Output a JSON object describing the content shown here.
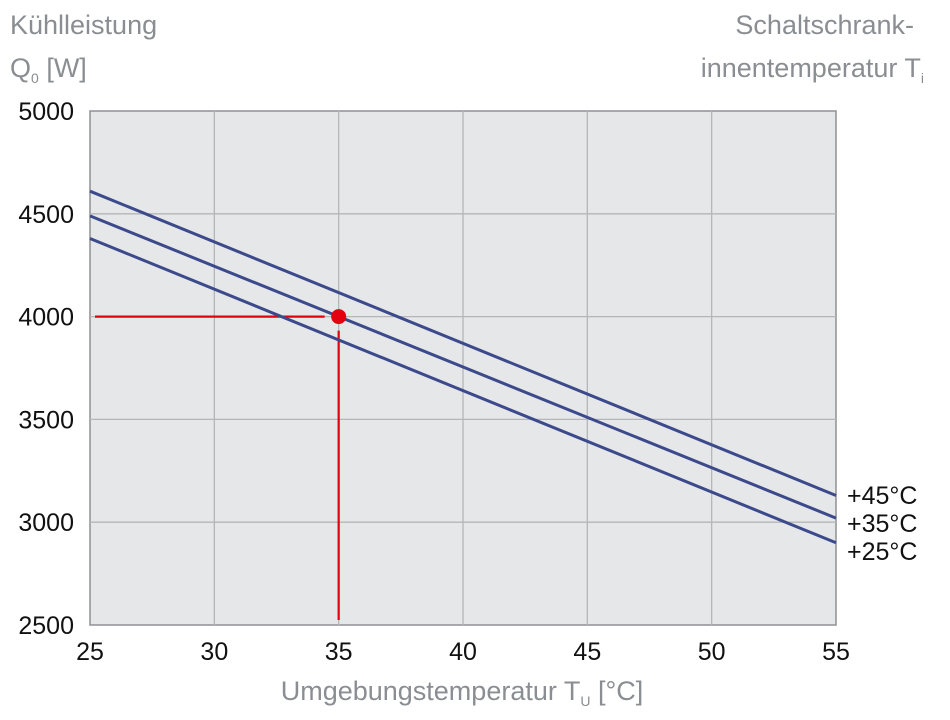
{
  "chart_data": {
    "type": "line",
    "ylabel_lines": [
      "Kühlleistung",
      "Q",
      "0",
      " [W]"
    ],
    "right_title": [
      "Schaltschrank-",
      "innentemperatur T",
      "i"
    ],
    "xlabel": [
      "Umgebungstemperatur T",
      "U",
      " [°C]"
    ],
    "xlim": [
      25,
      55
    ],
    "ylim": [
      2500,
      5000
    ],
    "x_ticks": [
      25,
      30,
      35,
      40,
      45,
      50,
      55
    ],
    "y_ticks": [
      2500,
      3000,
      3500,
      4000,
      4500,
      5000
    ],
    "grid": true,
    "series": [
      {
        "name": "+45°C",
        "x": [
          25,
          55
        ],
        "y": [
          4610,
          3130
        ]
      },
      {
        "name": "+35°C",
        "x": [
          25,
          55
        ],
        "y": [
          4490,
          3020
        ]
      },
      {
        "name": "+25°C",
        "x": [
          25,
          55
        ],
        "y": [
          4380,
          2900
        ]
      }
    ],
    "operating_point": {
      "x": 35,
      "y": 4000
    },
    "colors": {
      "series": "#3c4a8c",
      "highlight": "#e3000f",
      "plot_bg": "#e6e7e8",
      "grid": "#b4b6b9"
    }
  }
}
